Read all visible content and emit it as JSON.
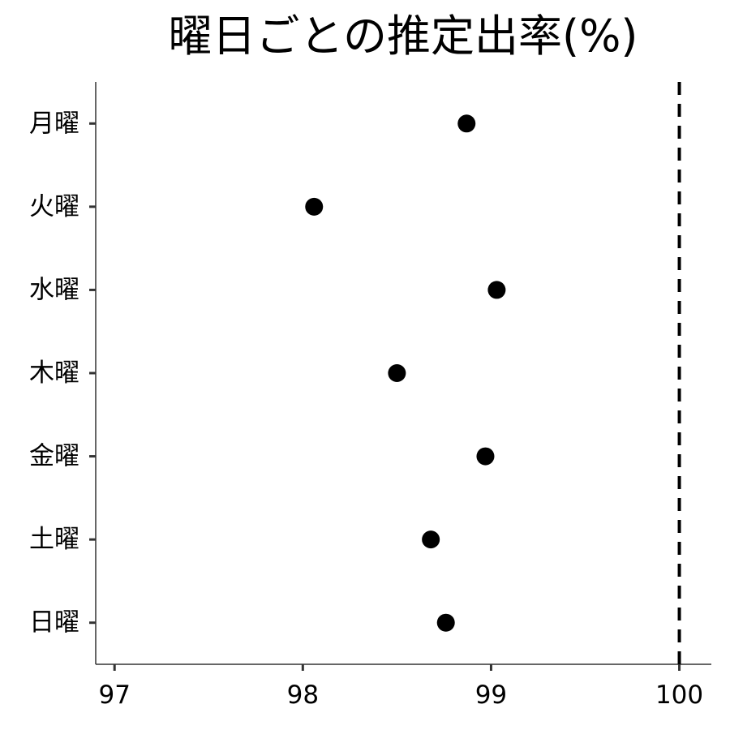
{
  "chart_data": {
    "type": "scatter",
    "title": "曜日ごとの推定出率(%)",
    "xlabel": "",
    "ylabel": "",
    "xlim": [
      96.9,
      100.17
    ],
    "x_ticks": [
      97,
      98,
      99,
      100
    ],
    "x_tick_labels": [
      "97",
      "98",
      "99",
      "100"
    ],
    "categories": [
      "月曜",
      "火曜",
      "水曜",
      "木曜",
      "金曜",
      "土曜",
      "日曜"
    ],
    "values": [
      98.87,
      98.06,
      99.03,
      98.5,
      98.97,
      98.68,
      98.76
    ],
    "reference_line": {
      "x": 100,
      "style": "dashed"
    },
    "grid": false,
    "legend": "none"
  }
}
